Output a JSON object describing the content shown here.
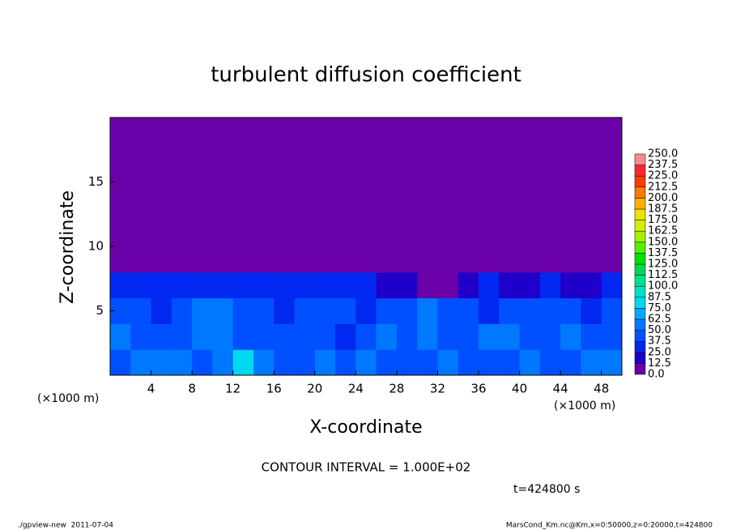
{
  "chart_data": {
    "type": "heatmap",
    "title": "turbulent diffusion coefficient",
    "x_label": "X-coordinate",
    "y_label": "Z-coordinate",
    "x_unit": "(×1000 m)",
    "y_unit": "(×1000 m)",
    "xlim": [
      0,
      50
    ],
    "ylim": [
      0,
      20
    ],
    "xticks": [
      4,
      8,
      12,
      16,
      20,
      24,
      28,
      32,
      36,
      40,
      44,
      48
    ],
    "yticks": [
      5,
      10,
      15
    ],
    "x": [
      0,
      2,
      4,
      6,
      8,
      10,
      12,
      14,
      16,
      18,
      20,
      22,
      24,
      26,
      28,
      30,
      32,
      34,
      36,
      38,
      40,
      42,
      44,
      46,
      48,
      50
    ],
    "y": [
      0,
      2,
      4,
      6,
      8,
      10,
      12,
      14,
      16,
      18,
      20
    ],
    "z": [
      [
        45,
        55,
        50,
        60,
        40,
        55,
        75,
        50,
        45,
        40,
        55,
        45,
        50,
        40,
        45,
        40,
        50,
        45,
        40,
        45,
        50,
        45,
        40,
        50,
        55
      ],
      [
        50,
        45,
        40,
        40,
        50,
        60,
        45,
        40,
        45,
        40,
        45,
        35,
        45,
        50,
        45,
        50,
        40,
        45,
        50,
        55,
        45,
        40,
        50,
        45,
        40
      ],
      [
        40,
        45,
        35,
        45,
        55,
        50,
        40,
        45,
        35,
        40,
        45,
        40,
        35,
        45,
        40,
        50,
        45,
        40,
        35,
        45,
        40,
        45,
        40,
        35,
        45
      ],
      [
        35,
        30,
        30,
        25,
        30,
        30,
        25,
        30,
        25,
        25,
        30,
        25,
        25,
        20,
        20,
        10,
        5,
        15,
        25,
        20,
        20,
        25,
        20,
        15,
        25
      ],
      [
        0,
        0,
        0,
        5,
        0,
        5,
        0,
        5,
        0,
        0,
        0,
        0,
        0,
        0,
        0,
        0,
        0,
        0,
        0,
        0,
        0,
        0,
        0,
        0,
        0
      ],
      [
        0,
        0,
        0,
        0,
        0,
        0,
        0,
        0,
        0,
        0,
        0,
        0,
        0,
        0,
        0,
        0,
        0,
        0,
        0,
        0,
        0,
        0,
        0,
        0,
        0
      ],
      [
        0,
        0,
        0,
        0,
        0,
        0,
        0,
        0,
        0,
        0,
        0,
        0,
        0,
        0,
        0,
        0,
        0,
        0,
        0,
        0,
        0,
        0,
        0,
        0,
        0
      ],
      [
        0,
        0,
        0,
        0,
        0,
        0,
        0,
        0,
        0,
        0,
        0,
        0,
        0,
        0,
        0,
        0,
        0,
        0,
        0,
        0,
        0,
        0,
        0,
        0,
        0
      ],
      [
        0,
        0,
        0,
        0,
        0,
        0,
        0,
        0,
        0,
        0,
        0,
        0,
        0,
        0,
        0,
        0,
        0,
        0,
        0,
        0,
        0,
        0,
        0,
        0,
        0
      ],
      [
        0,
        0,
        0,
        0,
        0,
        0,
        0,
        0,
        0,
        0,
        0,
        0,
        0,
        0,
        0,
        0,
        0,
        0,
        0,
        0,
        0,
        0,
        0,
        0,
        0
      ]
    ],
    "levels": [
      {
        "value": 0,
        "label": "0.0"
      },
      12.5,
      {
        "value": 25,
        "label": "25.0"
      },
      37.5,
      {
        "value": 50,
        "label": "50.0"
      },
      62.5,
      {
        "value": 75,
        "label": "75.0"
      },
      87.5,
      {
        "value": 100,
        "label": "100.0"
      },
      112.5,
      {
        "value": 125,
        "label": "125.0"
      },
      137.5,
      {
        "value": 150,
        "label": "150.0"
      },
      162.5,
      {
        "value": 175,
        "label": "175.0"
      },
      187.5,
      {
        "value": 200,
        "label": "200.0"
      },
      212.5,
      {
        "value": 225,
        "label": "225.0"
      },
      237.5,
      {
        "value": 250,
        "label": "250.0"
      }
    ],
    "colors": [
      "#6a00a8",
      "#2000c8",
      "#0028f0",
      "#0050ff",
      "#0078ff",
      "#00a8ff",
      "#00d8f0",
      "#00e0c0",
      "#00e090",
      "#00d850",
      "#00e000",
      "#50f000",
      "#a0f000",
      "#d0f000",
      "#f0e000",
      "#ffb000",
      "#ff7800",
      "#ff3c00",
      "#ff2830",
      "#ff8888"
    ],
    "annotation": "CONTOUR INTERVAL = 1.000E+02",
    "time_label": "t=424800 s",
    "footer_left": "./gpview-new  2011-07-04",
    "footer_right": "MarsCond_Km.nc@Km,x=0:50000,z=0:20000,t=424800"
  }
}
